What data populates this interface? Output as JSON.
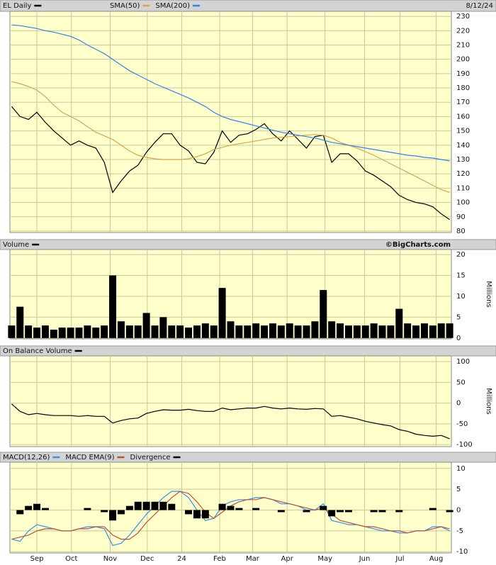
{
  "chart_data": [
    {
      "type": "line",
      "title": "EL Daily",
      "date": "8/12/24",
      "x": [
        0,
        1,
        2,
        3,
        4,
        5,
        6,
        7,
        8,
        9,
        10,
        11,
        12,
        13,
        14,
        15,
        16,
        17,
        18,
        19,
        20,
        21,
        22,
        23,
        24,
        25,
        26,
        27,
        28,
        29,
        30,
        31,
        32,
        33,
        34,
        35,
        36,
        37,
        38,
        39,
        40,
        41,
        42,
        43,
        44,
        45,
        46,
        47,
        48,
        49,
        50,
        51,
        52
      ],
      "xlim": [
        -0.2,
        52.2
      ],
      "ylim": [
        79,
        233.5
      ],
      "yticks": [
        80,
        90,
        100,
        110,
        120,
        130,
        140,
        150,
        160,
        170,
        180,
        190,
        200,
        210,
        220,
        230
      ],
      "grid": true,
      "series": [
        {
          "name": "EL Daily",
          "color": "#000000",
          "values": [
            167,
            160,
            158,
            163,
            156,
            150,
            145,
            140,
            143,
            140,
            138,
            128,
            107,
            115,
            122,
            126,
            135,
            142,
            148,
            148,
            140,
            136,
            128,
            127,
            135,
            150,
            142,
            147,
            148,
            151,
            155,
            148,
            143,
            150,
            144,
            138,
            146,
            147,
            128,
            134,
            134,
            129,
            122,
            119,
            115,
            111,
            105,
            102,
            100,
            99,
            97,
            92,
            88
          ]
        },
        {
          "name": "SMA(50)",
          "color": "#d4a650",
          "values": [
            184.5,
            183,
            181,
            178.5,
            174,
            168,
            163,
            160,
            157,
            153,
            149,
            146.5,
            144,
            140,
            136,
            133,
            131.5,
            130.5,
            130,
            130,
            130,
            130.5,
            132,
            134,
            137,
            138.5,
            140,
            141,
            142,
            143,
            144,
            145,
            145.5,
            146,
            146.5,
            147,
            147.5,
            147,
            145,
            142,
            140,
            138,
            135.5,
            133,
            130,
            127,
            124,
            121,
            118,
            115,
            112,
            109,
            107
          ]
        },
        {
          "name": "SMA(200)",
          "color": "#3a7ee8",
          "values": [
            224,
            223.5,
            222.5,
            221.5,
            220,
            219,
            217.5,
            216,
            213.5,
            210,
            207,
            204,
            200,
            196,
            192,
            189,
            186,
            183,
            180.5,
            178,
            175.5,
            173,
            170,
            167,
            163,
            160,
            158,
            156.5,
            155,
            153.5,
            152,
            150.5,
            149,
            148,
            147,
            146,
            145,
            143.5,
            142,
            141,
            140,
            139,
            138,
            137,
            136,
            135,
            134,
            133,
            132.5,
            131.5,
            131,
            130,
            129
          ]
        }
      ]
    },
    {
      "type": "bar",
      "source": "©BigCharts.com",
      "y_label": "Millions",
      "ylim": [
        -0.2,
        21.2
      ],
      "yticks": [
        0,
        5,
        10,
        15,
        20
      ],
      "grid": true,
      "series": [
        {
          "name": "Volume",
          "color": "#000000",
          "values": [
            3,
            7.5,
            3,
            2.5,
            3,
            2,
            2.5,
            2.5,
            2.5,
            3,
            2.5,
            3,
            15,
            4,
            3,
            3,
            6,
            3,
            5,
            3,
            3,
            2.5,
            3,
            3.5,
            3,
            12,
            4,
            3,
            3,
            3.5,
            3,
            3.5,
            3,
            3.5,
            3,
            3,
            4,
            11.5,
            4,
            3.5,
            3,
            3,
            3,
            3.5,
            3,
            3,
            7,
            3.5,
            3,
            3.5,
            3,
            3.5,
            3.5
          ]
        }
      ]
    },
    {
      "type": "line",
      "y_label": "Millions",
      "ylim": [
        -105,
        114
      ],
      "yticks": [
        -100,
        -50,
        0,
        50,
        100
      ],
      "grid": true,
      "series": [
        {
          "name": "On Balance Volume",
          "color": "#000000",
          "values": [
            -2,
            -20,
            -28,
            -25,
            -28,
            -30,
            -30,
            -30,
            -32,
            -30,
            -32,
            -32,
            -48,
            -42,
            -38,
            -36,
            -25,
            -20,
            -16,
            -17,
            -17,
            -15,
            -18,
            -20,
            -20,
            -12,
            -16,
            -14,
            -12,
            -12,
            -8,
            -12,
            -14,
            -12,
            -14,
            -15,
            -13,
            -14,
            -32,
            -30,
            -34,
            -38,
            -44,
            -48,
            -52,
            -55,
            -64,
            -68,
            -75,
            -78,
            -80,
            -78,
            -86
          ]
        }
      ]
    },
    {
      "type": "line",
      "ylim": [
        -10.3,
        11.5
      ],
      "yticks": [
        -10,
        -5,
        0,
        5,
        10
      ],
      "grid": true,
      "xticks": [
        {
          "value": 3,
          "label": "Sep"
        },
        {
          "value": 7.1,
          "label": "Oct"
        },
        {
          "value": 11.7,
          "label": "Nov"
        },
        {
          "value": 16.1,
          "label": "Dec"
        },
        {
          "value": 20.2,
          "label": "24"
        },
        {
          "value": 24.7,
          "label": "Feb"
        },
        {
          "value": 28.6,
          "label": "Mar"
        },
        {
          "value": 32.7,
          "label": "Apr"
        },
        {
          "value": 37.2,
          "label": "May"
        },
        {
          "value": 41.9,
          "label": "Jun"
        },
        {
          "value": 46.1,
          "label": "Jul"
        },
        {
          "value": 50.4,
          "label": "Aug"
        }
      ],
      "series": [
        {
          "name": "MACD(12,26)",
          "color": "#3a8ee8",
          "values": [
            -7,
            -7.5,
            -5,
            -3.5,
            -4,
            -4.5,
            -5,
            -5,
            -4.5,
            -4,
            -4,
            -4.5,
            -8.5,
            -8,
            -6,
            -3.5,
            -1,
            1,
            3,
            4.5,
            4.5,
            3,
            0,
            -2.5,
            -2,
            1,
            2,
            2.5,
            2.5,
            3,
            3,
            2.5,
            1.5,
            1.5,
            1,
            0,
            0,
            1.5,
            -2.5,
            -3,
            -3.5,
            -3.5,
            -4,
            -4.5,
            -5,
            -5,
            -5.5,
            -5.5,
            -5,
            -5,
            -4,
            -4,
            -5
          ]
        },
        {
          "name": "MACD EMA(9)",
          "color": "#b5523b",
          "values": [
            -7,
            -6.5,
            -6,
            -5,
            -4.5,
            -4.5,
            -5,
            -5,
            -4.5,
            -4.5,
            -4,
            -4,
            -6,
            -7,
            -7,
            -5.5,
            -3,
            -1,
            1,
            3,
            4.5,
            4,
            2,
            -0.5,
            -2,
            -0.5,
            1,
            2,
            2.5,
            2.5,
            3,
            2.5,
            2,
            1.5,
            1,
            0.5,
            0,
            0.5,
            -1,
            -2.5,
            -3,
            -3.5,
            -4,
            -4,
            -4.5,
            -5,
            -5,
            -5.5,
            -5,
            -5,
            -4.5,
            -4,
            -4.5
          ]
        },
        {
          "name": "Divergence",
          "color": "#000000",
          "style": "bar",
          "values": [
            0,
            -1,
            1,
            1.5,
            0.5,
            0,
            0,
            0,
            0,
            0.5,
            0,
            -0.5,
            -2.5,
            -1,
            1,
            2,
            2,
            2,
            2,
            1.5,
            0,
            -1,
            -2,
            -2,
            0,
            1.5,
            1,
            0.5,
            0,
            0.5,
            0,
            0,
            -0.5,
            0,
            0,
            -0.5,
            0,
            1,
            -1.5,
            -0.5,
            -0.5,
            0,
            0,
            -0.5,
            -0.5,
            0,
            -0.5,
            0,
            0,
            0,
            0.5,
            0,
            -0.5
          ]
        }
      ]
    }
  ]
}
